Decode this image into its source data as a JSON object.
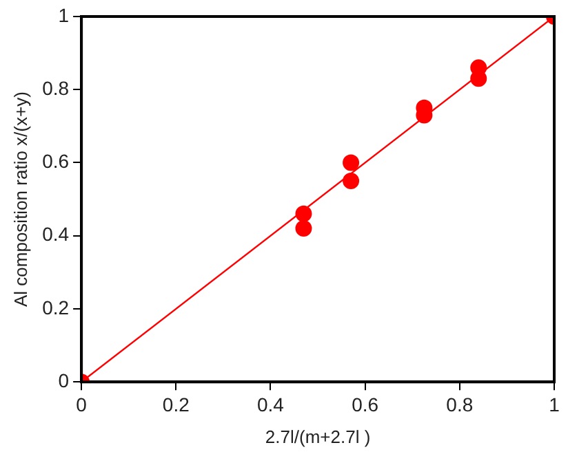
{
  "chart_data": {
    "type": "scatter",
    "xlabel": "2.7l/(m+2.7l )",
    "ylabel": "Al composition ratio x/(x+y)",
    "xlim": [
      0,
      1
    ],
    "ylim": [
      0,
      1
    ],
    "xticks": [
      0,
      0.2,
      0.4,
      0.6,
      0.8,
      1
    ],
    "yticks": [
      0,
      0.2,
      0.4,
      0.6,
      0.8,
      1
    ],
    "grid": false,
    "legend": false,
    "series": [
      {
        "type": "scatter",
        "color": "#ff0000",
        "marker": "circle",
        "x": [
          0,
          0.47,
          0.47,
          0.57,
          0.57,
          0.725,
          0.725,
          0.84,
          0.84,
          1
        ],
        "values": [
          0,
          0.42,
          0.46,
          0.55,
          0.6,
          0.73,
          0.75,
          0.83,
          0.86,
          1
        ]
      },
      {
        "type": "line",
        "color": "#ff0000",
        "marker": "none",
        "line_style": "solid",
        "x": [
          0,
          1
        ],
        "values": [
          0,
          1
        ]
      }
    ]
  }
}
